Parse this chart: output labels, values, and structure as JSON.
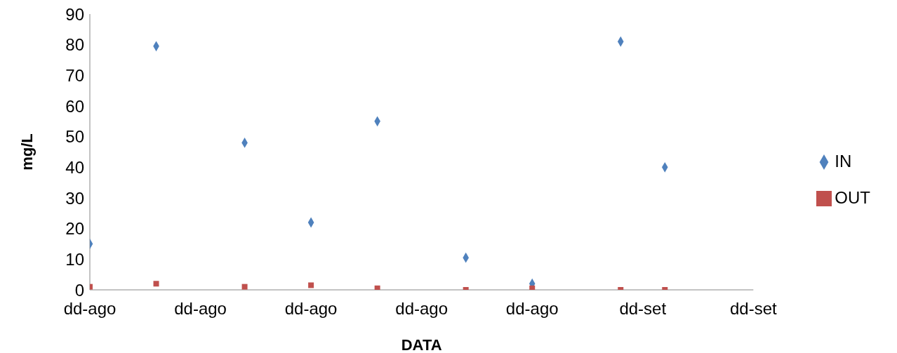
{
  "chart_data": {
    "type": "scatter",
    "xlabel": "DATA",
    "ylabel": "mg/L",
    "categories": [
      "dd-ago",
      null,
      null,
      null,
      null,
      "dd-ago",
      null,
      null,
      null,
      null,
      "dd-ago",
      null,
      null,
      null,
      null,
      "dd-ago",
      null,
      null,
      null,
      null,
      "dd-ago",
      null,
      null,
      null,
      null,
      "dd-set",
      null,
      null,
      null,
      null,
      "dd-set"
    ],
    "ylim": [
      0,
      90
    ],
    "yticks": [
      0,
      10,
      20,
      30,
      40,
      50,
      60,
      70,
      80,
      90
    ],
    "grid": false,
    "legend": "right",
    "series": [
      {
        "name": "IN",
        "color": "#4f81bd",
        "marker": "diamond",
        "values": [
          15,
          null,
          null,
          79.5,
          null,
          null,
          null,
          48,
          null,
          null,
          22,
          null,
          null,
          55,
          null,
          null,
          null,
          10.5,
          null,
          null,
          2,
          null,
          null,
          null,
          81,
          null,
          40,
          null,
          null,
          null,
          null
        ]
      },
      {
        "name": "OUT",
        "color": "#c0504d",
        "marker": "square",
        "values": [
          1,
          null,
          null,
          2,
          null,
          null,
          null,
          1,
          null,
          null,
          1.5,
          null,
          null,
          0.5,
          null,
          null,
          null,
          0,
          null,
          null,
          0.5,
          null,
          null,
          null,
          0,
          null,
          0,
          null,
          null,
          null,
          null
        ]
      }
    ]
  }
}
